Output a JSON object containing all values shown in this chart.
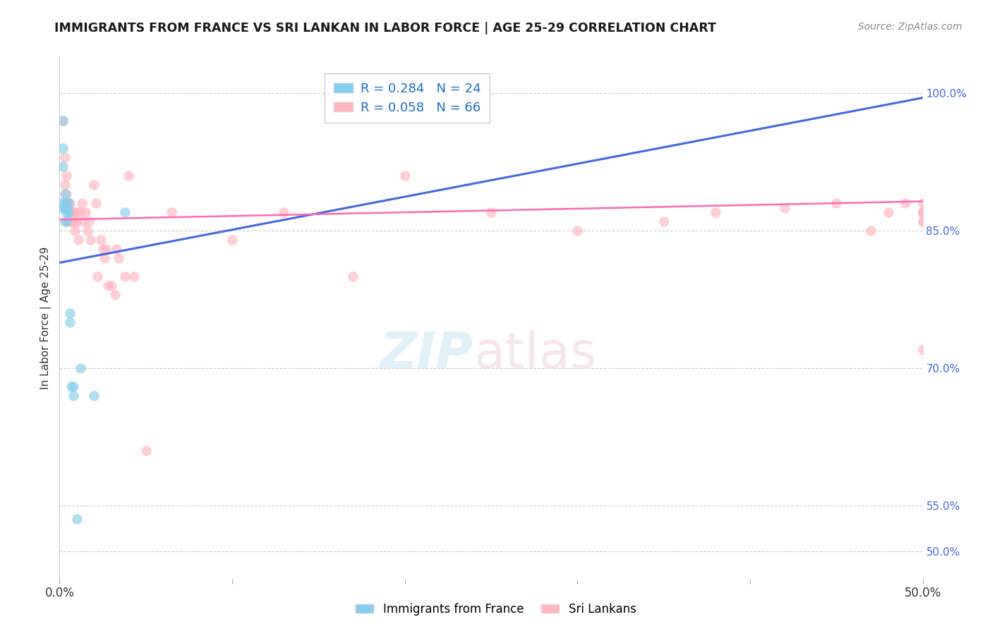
{
  "title": "IMMIGRANTS FROM FRANCE VS SRI LANKAN IN LABOR FORCE | AGE 25-29 CORRELATION CHART",
  "source": "Source: ZipAtlas.com",
  "ylabel": "In Labor Force | Age 25-29",
  "ytick_labels": [
    "50.0%",
    "55.0%",
    "70.0%",
    "85.0%",
    "100.0%"
  ],
  "ytick_values": [
    0.5,
    0.55,
    0.7,
    0.85,
    1.0
  ],
  "xlim": [
    0.0,
    0.5
  ],
  "ylim": [
    0.47,
    1.04
  ],
  "legend_r_france": "R = 0.284",
  "legend_n_france": "N = 24",
  "legend_r_sri": "R = 0.058",
  "legend_n_sri": "N = 66",
  "color_france": "#87CEEB",
  "color_sri": "#FFB6C1",
  "color_france_line": "#4169E1",
  "color_sri_line": "#FF69B4",
  "france_line_x": [
    0.0,
    0.5
  ],
  "france_line_y": [
    0.815,
    0.995
  ],
  "sri_line_x": [
    0.0,
    0.5
  ],
  "sri_line_y": [
    0.862,
    0.882
  ],
  "france_x": [
    0.001,
    0.001,
    0.002,
    0.002,
    0.002,
    0.003,
    0.003,
    0.003,
    0.003,
    0.004,
    0.004,
    0.004,
    0.004,
    0.005,
    0.005,
    0.006,
    0.006,
    0.007,
    0.008,
    0.008,
    0.01,
    0.012,
    0.02,
    0.038
  ],
  "france_y": [
    0.875,
    0.88,
    0.92,
    0.94,
    0.97,
    0.86,
    0.875,
    0.88,
    0.89,
    0.875,
    0.87,
    0.86,
    0.88,
    0.87,
    0.88,
    0.76,
    0.75,
    0.68,
    0.68,
    0.67,
    0.535,
    0.7,
    0.67,
    0.87
  ],
  "sri_x": [
    0.002,
    0.003,
    0.003,
    0.004,
    0.004,
    0.004,
    0.004,
    0.005,
    0.005,
    0.005,
    0.006,
    0.006,
    0.006,
    0.007,
    0.007,
    0.008,
    0.008,
    0.009,
    0.009,
    0.01,
    0.01,
    0.011,
    0.012,
    0.013,
    0.014,
    0.015,
    0.016,
    0.017,
    0.018,
    0.02,
    0.021,
    0.022,
    0.024,
    0.025,
    0.026,
    0.027,
    0.028,
    0.03,
    0.032,
    0.033,
    0.034,
    0.038,
    0.04,
    0.043,
    0.05,
    0.065,
    0.1,
    0.13,
    0.17,
    0.2,
    0.25,
    0.3,
    0.35,
    0.38,
    0.42,
    0.45,
    0.47,
    0.48,
    0.49,
    0.5,
    0.5,
    0.5,
    0.5,
    0.5,
    0.5,
    0.5
  ],
  "sri_y": [
    0.97,
    0.9,
    0.93,
    0.875,
    0.88,
    0.89,
    0.91,
    0.875,
    0.88,
    0.86,
    0.875,
    0.87,
    0.88,
    0.86,
    0.87,
    0.86,
    0.87,
    0.85,
    0.86,
    0.87,
    0.86,
    0.84,
    0.87,
    0.88,
    0.86,
    0.87,
    0.85,
    0.86,
    0.84,
    0.9,
    0.88,
    0.8,
    0.84,
    0.83,
    0.82,
    0.83,
    0.79,
    0.79,
    0.78,
    0.83,
    0.82,
    0.8,
    0.91,
    0.8,
    0.61,
    0.87,
    0.84,
    0.87,
    0.8,
    0.91,
    0.87,
    0.85,
    0.86,
    0.87,
    0.875,
    0.88,
    0.85,
    0.87,
    0.88,
    0.87,
    0.86,
    0.86,
    0.87,
    0.87,
    0.88,
    0.72
  ]
}
